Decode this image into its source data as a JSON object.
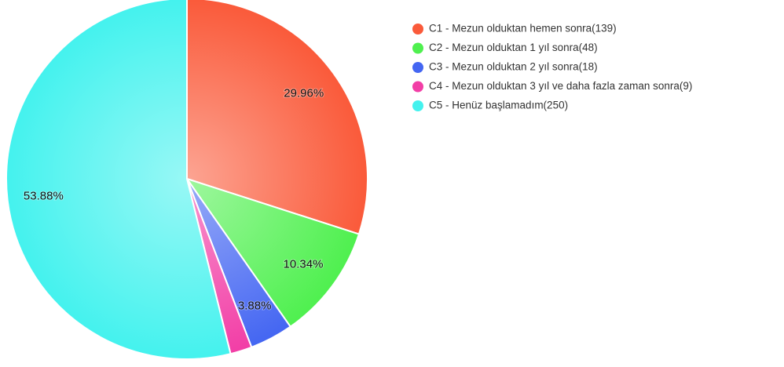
{
  "chart_data": {
    "type": "pie",
    "categories": [
      "C1 - Mezun olduktan hemen sonra(139)",
      "C2 - Mezun olduktan 1 yıl sonra(48)",
      "C3 - Mezun olduktan 2 yıl sonra(18)",
      "C4 - Mezun olduktan 3 yıl ve daha fazla zaman sonra(9)",
      "C5 - Henüz başlamadım(250)"
    ],
    "values": [
      29.96,
      10.34,
      3.88,
      1.94,
      53.88
    ],
    "value_labels": [
      "29.96%",
      "10.34%",
      "3.88%",
      null,
      "53.88%"
    ],
    "colors": [
      "#fa5a3a",
      "#4ff04f",
      "#4466f2",
      "#f23ea6",
      "#44f2ee"
    ],
    "legend": "right"
  }
}
